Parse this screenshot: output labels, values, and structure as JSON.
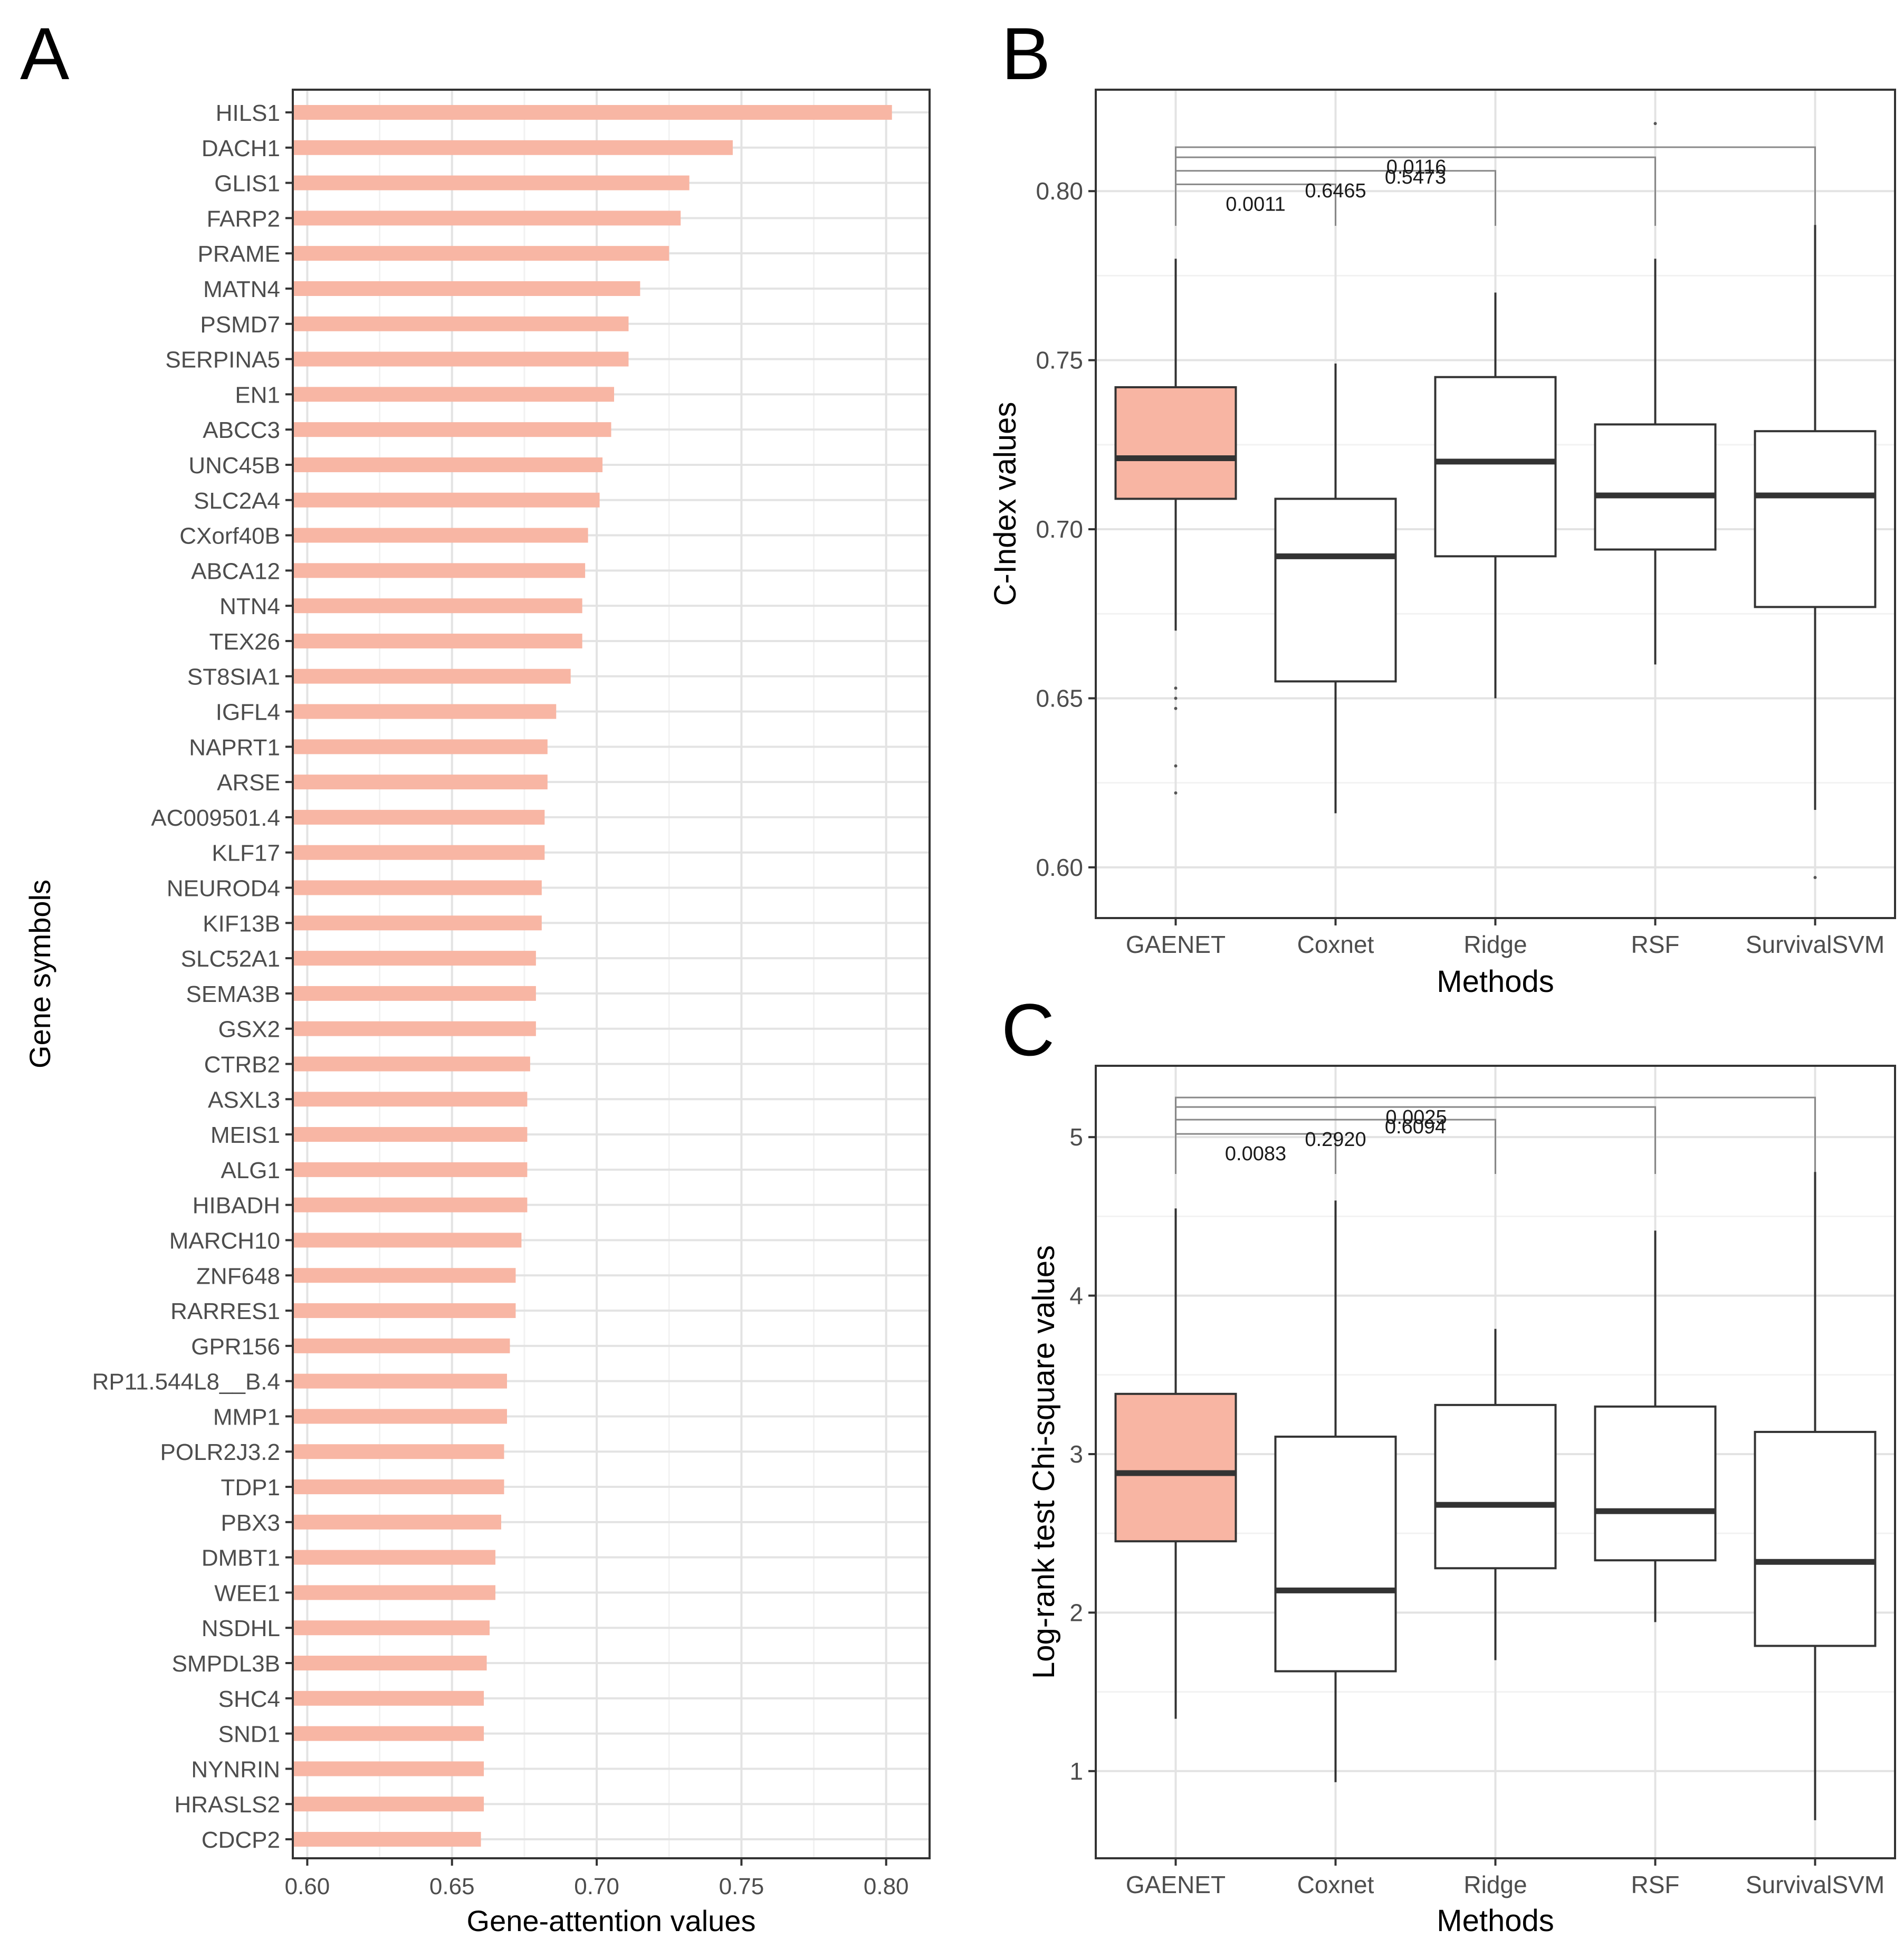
{
  "panels": {
    "A": {
      "letter": "A"
    },
    "B": {
      "letter": "B"
    },
    "C": {
      "letter": "C"
    }
  },
  "chart_data": [
    {
      "panel": "A",
      "type": "bar",
      "orientation": "horizontal",
      "xlabel": "Gene-attention values",
      "ylabel": "Gene symbols",
      "xlim": [
        0.595,
        0.815
      ],
      "xticks": [
        0.6,
        0.65,
        0.7,
        0.75,
        0.8
      ],
      "xtick_labels": [
        "0.60",
        "0.65",
        "0.70",
        "0.75",
        "0.80"
      ],
      "grid": true,
      "color": "#f8b6a4",
      "categories": [
        "HILS1",
        "DACH1",
        "GLIS1",
        "FARP2",
        "PRAME",
        "MATN4",
        "PSMD7",
        "SERPINA5",
        "EN1",
        "ABCC3",
        "UNC45B",
        "SLC2A4",
        "CXorf40B",
        "ABCA12",
        "NTN4",
        "TEX26",
        "ST8SIA1",
        "IGFL4",
        "NAPRT1",
        "ARSE",
        "AC009501.4",
        "KLF17",
        "NEUROD4",
        "KIF13B",
        "SLC52A1",
        "SEMA3B",
        "GSX2",
        "CTRB2",
        "ASXL3",
        "MEIS1",
        "ALG1",
        "HIBADH",
        "MARCH10",
        "ZNF648",
        "RARRES1",
        "GPR156",
        "RP11.544L8__B.4",
        "MMP1",
        "POLR2J3.2",
        "TDP1",
        "PBX3",
        "DMBT1",
        "WEE1",
        "NSDHL",
        "SMPDL3B",
        "SHC4",
        "SND1",
        "NYNRIN",
        "HRASLS2",
        "CDCP2"
      ],
      "values": [
        0.802,
        0.747,
        0.732,
        0.729,
        0.725,
        0.715,
        0.711,
        0.711,
        0.706,
        0.705,
        0.702,
        0.701,
        0.697,
        0.696,
        0.695,
        0.695,
        0.691,
        0.686,
        0.683,
        0.683,
        0.682,
        0.682,
        0.681,
        0.681,
        0.679,
        0.679,
        0.679,
        0.677,
        0.676,
        0.676,
        0.676,
        0.676,
        0.674,
        0.672,
        0.672,
        0.67,
        0.669,
        0.669,
        0.668,
        0.668,
        0.667,
        0.665,
        0.665,
        0.663,
        0.662,
        0.661,
        0.661,
        0.661,
        0.661,
        0.66
      ]
    },
    {
      "panel": "B",
      "type": "box",
      "xlabel": "Methods",
      "ylabel": "C-Index values",
      "ylim": [
        0.585,
        0.83
      ],
      "yticks": [
        0.6,
        0.65,
        0.7,
        0.75,
        0.8
      ],
      "ytick_labels": [
        "0.60",
        "0.65",
        "0.70",
        "0.75",
        "0.80"
      ],
      "grid": true,
      "highlight_color": "#f8b5a3",
      "categories": [
        "GAENET",
        "Coxnet",
        "Ridge",
        "RSF",
        "SurvivalSVM"
      ],
      "boxes": [
        {
          "name": "GAENET",
          "lower_whisker": 0.67,
          "q1": 0.709,
          "median": 0.721,
          "q3": 0.742,
          "upper_whisker": 0.78,
          "outliers": [
            0.653,
            0.65,
            0.647,
            0.63,
            0.622
          ],
          "highlight": true
        },
        {
          "name": "Coxnet",
          "lower_whisker": 0.616,
          "q1": 0.655,
          "median": 0.692,
          "q3": 0.709,
          "upper_whisker": 0.749,
          "outliers": [],
          "highlight": false
        },
        {
          "name": "Ridge",
          "lower_whisker": 0.65,
          "q1": 0.692,
          "median": 0.72,
          "q3": 0.745,
          "upper_whisker": 0.77,
          "outliers": [],
          "highlight": false
        },
        {
          "name": "RSF",
          "lower_whisker": 0.66,
          "q1": 0.694,
          "median": 0.71,
          "q3": 0.731,
          "upper_whisker": 0.78,
          "outliers": [
            0.82
          ],
          "highlight": false
        },
        {
          "name": "SurvivalSVM",
          "lower_whisker": 0.617,
          "q1": 0.677,
          "median": 0.71,
          "q3": 0.729,
          "upper_whisker": 0.79,
          "outliers": [
            0.597
          ],
          "highlight": false
        }
      ],
      "comparisons": [
        {
          "from": "GAENET",
          "to": "Coxnet",
          "p": "0.0011",
          "bar_y": 0.802
        },
        {
          "from": "GAENET",
          "to": "Ridge",
          "p": "0.6465",
          "bar_y": 0.806
        },
        {
          "from": "GAENET",
          "to": "RSF",
          "p": "0.5473",
          "bar_y": 0.81
        },
        {
          "from": "GAENET",
          "to": "SurvivalSVM",
          "p": "0.0116",
          "bar_y": 0.813
        }
      ]
    },
    {
      "panel": "C",
      "type": "box",
      "xlabel": "Methods",
      "ylabel": "Log-rank test Chi-square values",
      "ylim": [
        0.45,
        5.45
      ],
      "yticks": [
        1,
        2,
        3,
        4,
        5
      ],
      "ytick_labels": [
        "1",
        "2",
        "3",
        "4",
        "5"
      ],
      "grid": true,
      "highlight_color": "#f8b5a3",
      "categories": [
        "GAENET",
        "Coxnet",
        "Ridge",
        "RSF",
        "SurvivalSVM"
      ],
      "boxes": [
        {
          "name": "GAENET",
          "lower_whisker": 1.33,
          "q1": 2.45,
          "median": 2.88,
          "q3": 3.38,
          "upper_whisker": 4.55,
          "outliers": [],
          "highlight": true
        },
        {
          "name": "Coxnet",
          "lower_whisker": 0.93,
          "q1": 1.63,
          "median": 2.14,
          "q3": 3.11,
          "upper_whisker": 4.6,
          "outliers": [],
          "highlight": false
        },
        {
          "name": "Ridge",
          "lower_whisker": 1.7,
          "q1": 2.28,
          "median": 2.68,
          "q3": 3.31,
          "upper_whisker": 3.79,
          "outliers": [],
          "highlight": false
        },
        {
          "name": "RSF",
          "lower_whisker": 1.94,
          "q1": 2.33,
          "median": 2.64,
          "q3": 3.3,
          "upper_whisker": 4.41,
          "outliers": [],
          "highlight": false
        },
        {
          "name": "SurvivalSVM",
          "lower_whisker": 0.69,
          "q1": 1.79,
          "median": 2.32,
          "q3": 3.14,
          "upper_whisker": 4.78,
          "outliers": [],
          "highlight": false
        }
      ],
      "comparisons": [
        {
          "from": "GAENET",
          "to": "Coxnet",
          "p": "0.0083",
          "bar_y": 5.02
        },
        {
          "from": "GAENET",
          "to": "Ridge",
          "p": "0.2920",
          "bar_y": 5.11
        },
        {
          "from": "GAENET",
          "to": "RSF",
          "p": "0.6094",
          "bar_y": 5.19
        },
        {
          "from": "GAENET",
          "to": "SurvivalSVM",
          "p": "0.0025",
          "bar_y": 5.25
        }
      ]
    }
  ]
}
